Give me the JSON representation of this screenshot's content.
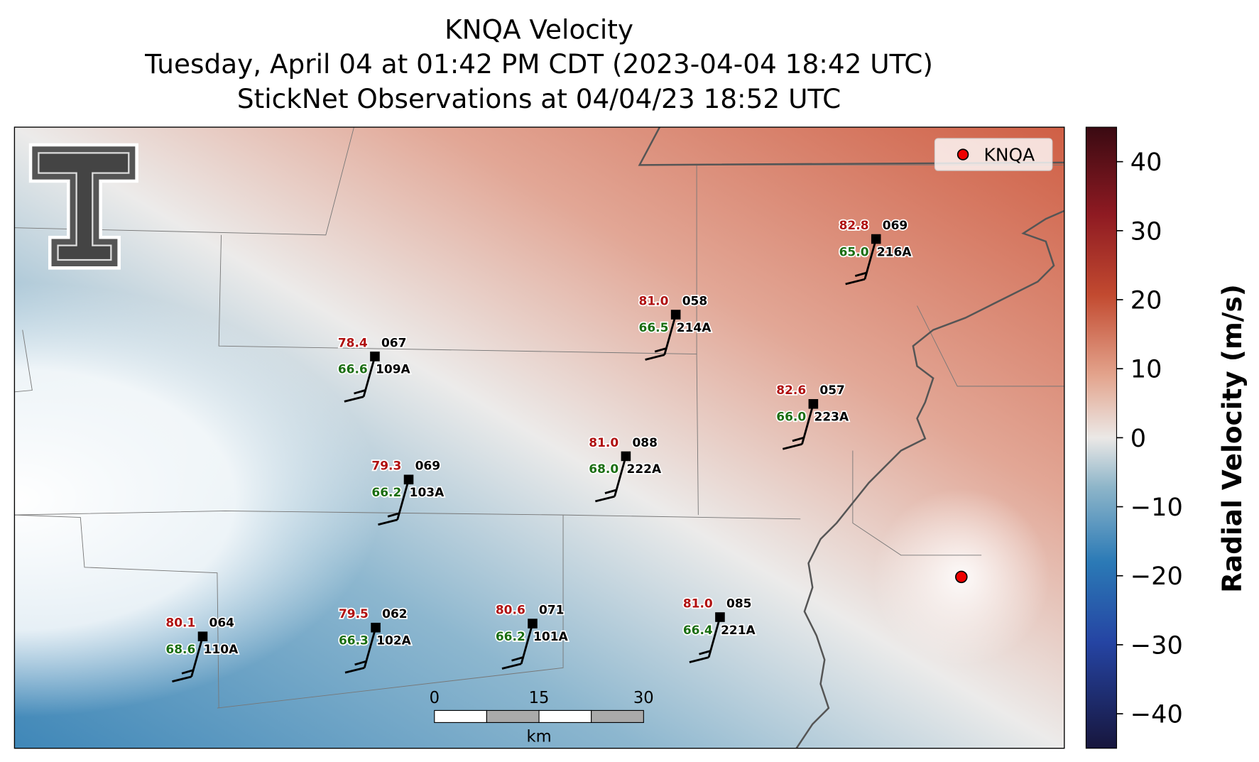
{
  "title": {
    "line1": "KNQA Velocity",
    "line2": "Tuesday, April 04 at 01:42 PM CDT (2023-04-04 18:42 UTC)",
    "line3": "StickNet Observations at 04/04/23 18:52 UTC"
  },
  "legend": {
    "label": "KNQA"
  },
  "colorbar": {
    "label": "Radial Velocity (m/s)",
    "lim": [
      -45,
      45
    ],
    "ticks": [
      {
        "value": -40,
        "label": "−40"
      },
      {
        "value": -30,
        "label": "−30"
      },
      {
        "value": -20,
        "label": "−20"
      },
      {
        "value": -10,
        "label": "−10"
      },
      0,
      10,
      20,
      30,
      40
    ]
  },
  "scale_bar": {
    "labels": [
      "0",
      "15",
      "30"
    ],
    "unit": "km"
  },
  "stations": [
    {
      "id": "216A",
      "temperature": "82.8",
      "dewpoint": "65.0",
      "code": "069"
    },
    {
      "id": "214A",
      "temperature": "81.0",
      "dewpoint": "66.5",
      "code": "058"
    },
    {
      "id": "109A",
      "temperature": "78.4",
      "dewpoint": "66.6",
      "code": "067"
    },
    {
      "id": "223A",
      "temperature": "82.6",
      "dewpoint": "66.0",
      "code": "057"
    },
    {
      "id": "222A",
      "temperature": "81.0",
      "dewpoint": "68.0",
      "code": "088"
    },
    {
      "id": "103A",
      "temperature": "79.3",
      "dewpoint": "66.2",
      "code": "069"
    },
    {
      "id": "110A",
      "temperature": "80.1",
      "dewpoint": "68.6",
      "code": "064"
    },
    {
      "id": "102A",
      "temperature": "79.5",
      "dewpoint": "66.3",
      "code": "062"
    },
    {
      "id": "101A",
      "temperature": "80.6",
      "dewpoint": "66.2",
      "code": "071"
    },
    {
      "id": "221A",
      "temperature": "81.0",
      "dewpoint": "66.4",
      "code": "085"
    }
  ]
}
